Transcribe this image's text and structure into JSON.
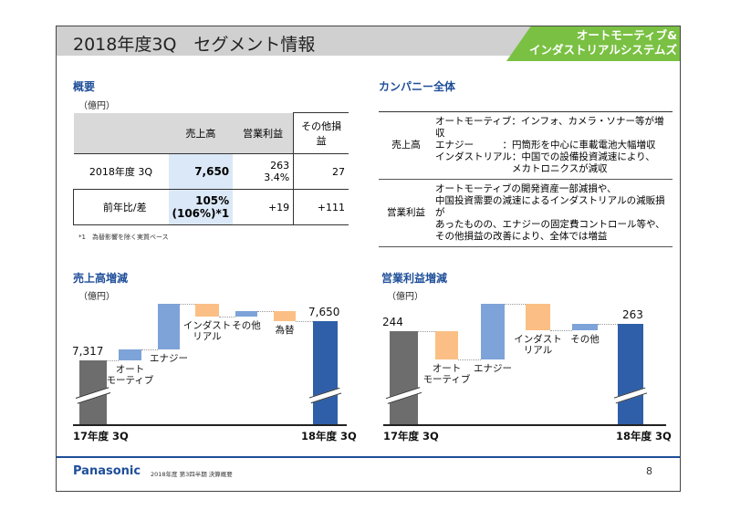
{
  "header": {
    "title": "2018年度3Q　セグメント情報",
    "segment_tab": [
      "オートモーティブ&",
      "インダストリアルシステムズ"
    ],
    "tab_color": "#7ac143"
  },
  "overview": {
    "heading": "概要",
    "unit": "（億円）",
    "columns": [
      "",
      "売上高",
      "営業利益",
      "その他損益"
    ],
    "rows": [
      {
        "label": "2018年度 3Q",
        "sales": "7,650",
        "op_profit": "263",
        "op_margin": "3.4%",
        "other": "27"
      },
      {
        "label": "前年比/差",
        "sales": "105%",
        "sales_sub": "(106%)*1",
        "op_profit": "+19",
        "other": "+111"
      }
    ],
    "footnote": "*1　為替影響を除く実質ベース"
  },
  "company": {
    "heading": "カンパニー全体",
    "rows": [
      {
        "label": "売上高",
        "lines": [
          "オートモーティブ：インフォ、カメラ・ソナー等が増収",
          "エナジー　　　：円筒形を中心に車載電池大幅増収",
          "インダストリアル：中国での設備投資減速により、",
          "　　　　　　　　メカトロニクスが減収"
        ]
      },
      {
        "label": "営業利益",
        "lines": [
          "オートモーティブの開発資産一部減損や、",
          "中国投資需要の減速によるインダストリアルの減販損が",
          "あったものの、エナジーの固定費コントロール等や、",
          "その他損益の改善により、全体では増益"
        ]
      }
    ]
  },
  "chart_data": [
    {
      "type": "waterfall",
      "title": "売上高増減",
      "unit": "（億円）",
      "start": {
        "label": "17年度 3Q",
        "value": 7317,
        "value_label": "7,317"
      },
      "end": {
        "label": "18年度 3Q",
        "value": 7650,
        "value_label": "7,650"
      },
      "steps": [
        {
          "label": "オート\nモーティブ",
          "value": 95
        },
        {
          "label": "エナジー",
          "value": 385
        },
        {
          "label": "インダスト\nリアル",
          "value": -105
        },
        {
          "label": "その他",
          "value": 45
        },
        {
          "label": "為替",
          "value": -87
        }
      ],
      "axis_break": true
    },
    {
      "type": "waterfall",
      "title": "営業利益増減",
      "unit": "（億円）",
      "start": {
        "label": "17年度 3Q",
        "value": 244,
        "value_label": "244"
      },
      "end": {
        "label": "18年度 3Q",
        "value": 263,
        "value_label": "263"
      },
      "steps": [
        {
          "label": "オート\nモーティブ",
          "value": -74
        },
        {
          "label": "エナジー",
          "value": 146
        },
        {
          "label": "インダスト\nリアル",
          "value": -70
        },
        {
          "label": "その他",
          "value": 17
        }
      ],
      "axis_break": true
    }
  ],
  "colors": {
    "start": "#6d6d6d",
    "end": "#2e5fa8",
    "increase": "#7da3d8",
    "decrease": "#fbbf85",
    "heading": "#1f4e99"
  },
  "footer": {
    "logo": "Panasonic",
    "doc": "2018年度 第3四半期 決算概要",
    "page": "8"
  }
}
